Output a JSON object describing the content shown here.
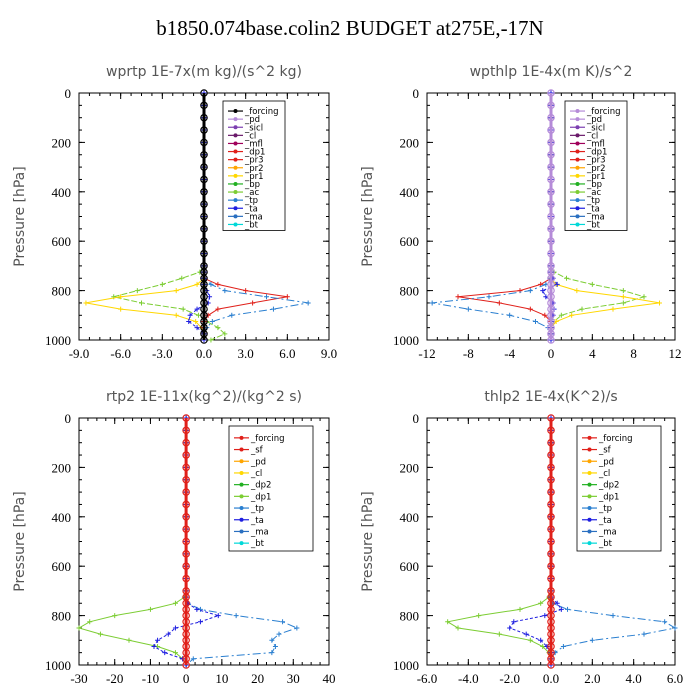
{
  "figure_title": "b1850.074base.colin2  BUDGET at275E,-17N",
  "chart_data": [
    {
      "type": "line",
      "title": "wprtp   1E-7x(m kg)/(s^2 kg)",
      "ylabel": "Pressure [hPa]",
      "ylim": [
        1000,
        0
      ],
      "xlim": [
        -9,
        9
      ],
      "xticks": [
        "-9.0",
        "-6.0",
        "-3.0",
        "0.0",
        "3.0",
        "6.0",
        "9.0"
      ],
      "yticks": [
        "0",
        "200",
        "400",
        "600",
        "800",
        "1000"
      ],
      "legend": [
        "_forcing",
        "_pd",
        "_sicl",
        "_cl",
        "_mfl",
        "_dp1",
        "_pr3",
        "_pr2",
        "_pr1",
        "_bp",
        "_ac",
        "_tp",
        "_ta",
        "_ma",
        "_bt"
      ],
      "colors": [
        "#000000",
        "#b58bd8",
        "#7c3fb0",
        "#6a1a6a",
        "#a0005a",
        "#e0201a",
        "#e0201a",
        "#ffa500",
        "#ffd700",
        "#22b022",
        "#7ccd33",
        "#2a7fd0",
        "#1e1ee0",
        "#2a6fc0",
        "#00d8d8"
      ],
      "pressure": [
        0,
        50,
        100,
        150,
        200,
        250,
        300,
        350,
        400,
        450,
        500,
        550,
        600,
        650,
        700,
        725,
        750,
        775,
        800,
        825,
        850,
        875,
        900,
        925,
        950,
        975,
        1000
      ],
      "series": [
        {
          "name": "_forcing",
          "values": [
            0,
            0,
            0,
            0,
            0,
            0,
            0,
            0,
            0,
            0,
            0,
            0,
            0,
            0,
            0,
            0,
            0,
            0,
            0,
            0,
            0,
            0,
            0,
            0,
            0,
            0,
            0
          ]
        },
        {
          "name": "_ac",
          "values": [
            0,
            0,
            0,
            0,
            0,
            0,
            0,
            0,
            0,
            0,
            0,
            0,
            0,
            0,
            0,
            -0.3,
            -1.6,
            -3,
            -4.8,
            -6.5,
            -4.5,
            -1.5,
            -0.4,
            0.2,
            1,
            1.5,
            0.5
          ]
        },
        {
          "name": "_pr1",
          "values": [
            0,
            0,
            0,
            0,
            0,
            0,
            0,
            0,
            0,
            0,
            0,
            0,
            0,
            0,
            0,
            0,
            0,
            -0.5,
            -2,
            -6,
            -8.5,
            -6,
            -2,
            -0.6,
            -0.2,
            0,
            0
          ]
        },
        {
          "name": "_pr3",
          "values": [
            0,
            0,
            0,
            0,
            0,
            0,
            0,
            0,
            0,
            0,
            0,
            0,
            0,
            0,
            0,
            0,
            0,
            1,
            3,
            6,
            3.5,
            1,
            0.3,
            0,
            0,
            0,
            0
          ]
        },
        {
          "name": "_tp",
          "values": [
            0,
            0,
            0,
            0,
            0,
            0,
            0,
            0,
            0,
            0,
            0,
            0,
            0,
            0,
            0,
            0,
            0,
            0.5,
            1.5,
            4.5,
            7.5,
            5,
            2,
            0.6,
            0.2,
            0,
            0
          ]
        },
        {
          "name": "_ta",
          "values": [
            0,
            0,
            0,
            0,
            0,
            0,
            0,
            0,
            0,
            0,
            0,
            0,
            0,
            0,
            0,
            0,
            0,
            0,
            0.2,
            0.4,
            0.3,
            -0.5,
            -1,
            -1.1,
            -0.5,
            0,
            0
          ]
        }
      ]
    },
    {
      "type": "line",
      "title": "wpthlp   1E-4x(m K)/s^2",
      "ylabel": "Pressure [hPa]",
      "ylim": [
        1000,
        0
      ],
      "xlim": [
        -12,
        12
      ],
      "xticks": [
        "-12",
        "-8",
        "-4",
        "0",
        "4",
        "8",
        "12"
      ],
      "yticks": [
        "0",
        "200",
        "400",
        "600",
        "800",
        "1000"
      ],
      "legend": [
        "_forcing",
        "_pd",
        "_sicl",
        "_cl",
        "_mfl",
        "_dp1",
        "_pr3",
        "_pr2",
        "_pr1",
        "_bp",
        "_ac",
        "_tp",
        "_ta",
        "_ma",
        "_bt"
      ],
      "colors": [
        "#b58bd8",
        "#b58bd8",
        "#7c3fb0",
        "#6a1a6a",
        "#a0005a",
        "#e0201a",
        "#e0201a",
        "#ffa500",
        "#ffd700",
        "#22b022",
        "#7ccd33",
        "#2a7fd0",
        "#1e1ee0",
        "#2a6fc0",
        "#00d8d8"
      ],
      "pressure": [
        0,
        50,
        100,
        150,
        200,
        250,
        300,
        350,
        400,
        450,
        500,
        550,
        600,
        650,
        700,
        725,
        750,
        775,
        800,
        825,
        850,
        875,
        900,
        925,
        950,
        975,
        1000
      ],
      "series": [
        {
          "name": "_forcing",
          "values": [
            0,
            0,
            0,
            0,
            0,
            0,
            0,
            0,
            0,
            0,
            0,
            0,
            0,
            0,
            0,
            0,
            0,
            0,
            0,
            0,
            0,
            0,
            0,
            0,
            0,
            0,
            0
          ]
        },
        {
          "name": "_ac",
          "values": [
            0,
            0,
            0,
            0,
            0,
            0,
            0,
            0,
            0,
            0,
            0,
            0,
            0,
            0,
            0,
            0.3,
            1.5,
            4,
            7,
            9,
            7,
            3,
            1,
            0.3,
            0,
            0,
            0
          ]
        },
        {
          "name": "_pr1",
          "values": [
            0,
            0,
            0,
            0,
            0,
            0,
            0,
            0,
            0,
            0,
            0,
            0,
            0,
            0,
            0,
            0,
            0,
            0.5,
            2.5,
            7,
            10.5,
            6,
            2,
            0.5,
            0,
            0,
            0
          ]
        },
        {
          "name": "_pr3",
          "values": [
            0,
            0,
            0,
            0,
            0,
            0,
            0,
            0,
            0,
            0,
            0,
            0,
            0,
            0,
            0,
            0,
            0,
            -1,
            -3,
            -9,
            -5,
            -2,
            -0.6,
            0,
            0,
            0,
            0
          ]
        },
        {
          "name": "_tp",
          "values": [
            0,
            0,
            0,
            0,
            0,
            0,
            0,
            0,
            0,
            0,
            0,
            0,
            0,
            0,
            0,
            0,
            0,
            -0.5,
            -2,
            -6,
            -11.5,
            -8,
            -4,
            -1.5,
            -0.3,
            0,
            0
          ]
        },
        {
          "name": "_ta",
          "values": [
            0,
            0,
            0,
            0,
            0,
            0,
            0,
            0,
            0,
            0,
            0,
            0,
            0,
            0,
            0,
            0,
            0.2,
            0.6,
            -0.8,
            -0.5,
            0.2,
            0.3,
            0.2,
            0.1,
            0,
            0,
            0
          ]
        }
      ]
    },
    {
      "type": "line",
      "title": "rtp2   1E-11x(kg^2)/(kg^2 s)",
      "ylabel": "Pressure [hPa]",
      "ylim": [
        1000,
        0
      ],
      "xlim": [
        -30,
        40
      ],
      "xticks": [
        "-30",
        "-20",
        "-10",
        "0",
        "10",
        "20",
        "30",
        "40"
      ],
      "yticks": [
        "0",
        "200",
        "400",
        "600",
        "800",
        "1000"
      ],
      "legend": [
        "_forcing",
        "_sf",
        "_pd",
        "_cl",
        "_dp2",
        "_dp1",
        "_tp",
        "_ta",
        "_ma",
        "_bt"
      ],
      "colors": [
        "#e0201a",
        "#e0201a",
        "#ffa500",
        "#ffd700",
        "#22b022",
        "#7ccd33",
        "#2a7fd0",
        "#1e1ee0",
        "#2a6fc0",
        "#00d8d8"
      ],
      "pressure": [
        0,
        50,
        100,
        150,
        200,
        250,
        300,
        350,
        400,
        450,
        500,
        550,
        600,
        650,
        700,
        725,
        750,
        775,
        800,
        825,
        850,
        875,
        900,
        925,
        950,
        975,
        1000
      ],
      "series": [
        {
          "name": "_forcing",
          "values": [
            0,
            0,
            0,
            0,
            0,
            0,
            0,
            0,
            0,
            0,
            0,
            0,
            0,
            0,
            0,
            0,
            0,
            0,
            0,
            0,
            0,
            0,
            0,
            0,
            0,
            0,
            0
          ]
        },
        {
          "name": "_dp1",
          "values": [
            0,
            0,
            0,
            0,
            0,
            0,
            0,
            0,
            0,
            0,
            0,
            0,
            0,
            0,
            0,
            -0.5,
            -3,
            -10,
            -20,
            -27,
            -30,
            -24,
            -16,
            -8,
            -3,
            -1,
            0
          ]
        },
        {
          "name": "_tp",
          "values": [
            0,
            0,
            0,
            0,
            0,
            0,
            0,
            0,
            0,
            0,
            0,
            0,
            0,
            0,
            0,
            0,
            0.5,
            4,
            14,
            27,
            31,
            26,
            24,
            25,
            24,
            2,
            0
          ]
        },
        {
          "name": "_ta",
          "values": [
            0,
            0,
            0,
            0,
            0,
            0,
            0,
            0,
            0,
            0,
            0,
            0,
            0,
            0,
            0,
            0,
            0.5,
            3,
            9,
            4,
            -3,
            -5,
            -8,
            -9,
            -6,
            -1,
            0
          ]
        }
      ]
    },
    {
      "type": "line",
      "title": "thlp2   1E-4x(K^2)/s",
      "ylabel": "Pressure [hPa]",
      "ylim": [
        1000,
        0
      ],
      "xlim": [
        -6,
        6
      ],
      "xticks": [
        "-6.0",
        "-4.0",
        "-2.0",
        "0.0",
        "2.0",
        "4.0",
        "6.0"
      ],
      "yticks": [
        "0",
        "200",
        "400",
        "600",
        "800",
        "1000"
      ],
      "legend": [
        "_forcing",
        "_sf",
        "_pd",
        "_cl",
        "_dp2",
        "_dp1",
        "_tp",
        "_ta",
        "_ma",
        "_bt"
      ],
      "colors": [
        "#e0201a",
        "#e0201a",
        "#ffa500",
        "#ffd700",
        "#22b022",
        "#7ccd33",
        "#2a7fd0",
        "#1e1ee0",
        "#2a6fc0",
        "#00d8d8"
      ],
      "pressure": [
        0,
        50,
        100,
        150,
        200,
        250,
        300,
        350,
        400,
        450,
        500,
        550,
        600,
        650,
        700,
        725,
        750,
        775,
        800,
        825,
        850,
        875,
        900,
        925,
        950,
        975,
        1000
      ],
      "series": [
        {
          "name": "_forcing",
          "values": [
            0,
            0,
            0,
            0,
            0,
            0,
            0,
            0,
            0,
            0,
            0,
            0,
            0,
            0,
            0,
            0,
            0,
            0,
            0,
            0,
            0,
            0,
            0,
            0,
            0,
            0,
            0
          ]
        },
        {
          "name": "_dp1",
          "values": [
            0,
            0,
            0,
            0,
            0,
            0,
            0,
            0,
            0,
            0,
            0,
            0,
            0,
            0,
            0,
            -0.1,
            -0.5,
            -1.5,
            -3.5,
            -5,
            -4.5,
            -2.5,
            -1,
            -0.4,
            -0.1,
            0,
            0
          ]
        },
        {
          "name": "_tp",
          "values": [
            0,
            0,
            0,
            0,
            0,
            0,
            0,
            0,
            0,
            0,
            0,
            0,
            0,
            0,
            0,
            0,
            0.1,
            0.8,
            3,
            5.5,
            6,
            4.5,
            2,
            0.6,
            0.2,
            0,
            0
          ]
        },
        {
          "name": "_ta",
          "values": [
            0,
            0,
            0,
            0,
            0,
            0,
            0,
            0,
            0,
            0,
            0,
            0,
            0,
            0,
            0,
            0,
            0.3,
            0.5,
            -0.3,
            -1.8,
            -2,
            -1.2,
            -0.5,
            -0.2,
            0,
            0,
            0
          ]
        }
      ]
    }
  ]
}
